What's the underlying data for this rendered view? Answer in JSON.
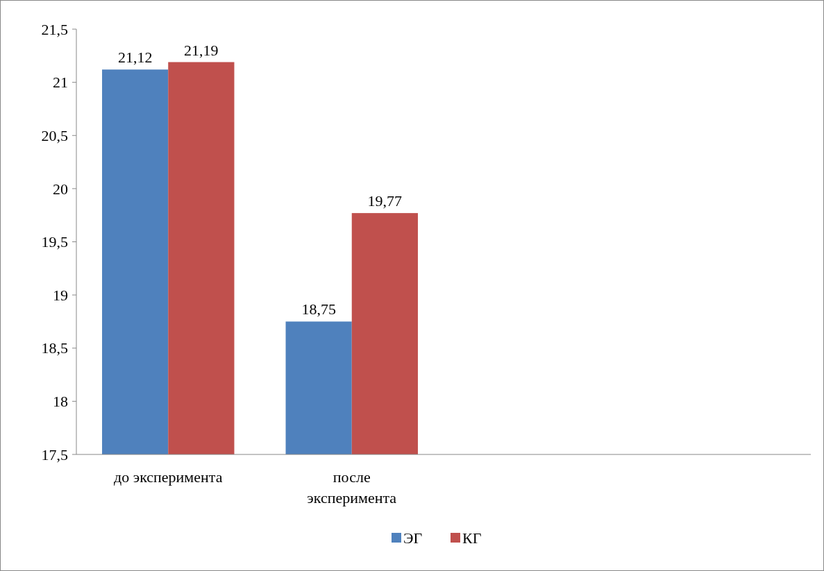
{
  "chart_data": {
    "type": "bar",
    "categories": [
      "до эксперимента",
      "после эксперимента",
      null,
      null
    ],
    "series": [
      {
        "name": "ЭГ",
        "color": "#4f81bd",
        "values": [
          21.12,
          18.75,
          null,
          null
        ],
        "value_labels": [
          "21,12",
          "18,75",
          null,
          null
        ]
      },
      {
        "name": "КГ",
        "color": "#c0504d",
        "values": [
          21.19,
          19.77,
          null,
          null
        ],
        "value_labels": [
          "21,19",
          "19,77",
          null,
          null
        ]
      }
    ],
    "ylim": [
      17.5,
      21.5
    ],
    "yticks": [
      {
        "value": 17.5,
        "label": "17,5"
      },
      {
        "value": 18,
        "label": "18"
      },
      {
        "value": 18.5,
        "label": "18,5"
      },
      {
        "value": 19,
        "label": "19"
      },
      {
        "value": 19.5,
        "label": "19,5"
      },
      {
        "value": 20,
        "label": "20"
      },
      {
        "value": 20.5,
        "label": "20,5"
      },
      {
        "value": 21,
        "label": "21"
      },
      {
        "value": 21.5,
        "label": "21,5"
      }
    ],
    "legend": "bottom"
  }
}
